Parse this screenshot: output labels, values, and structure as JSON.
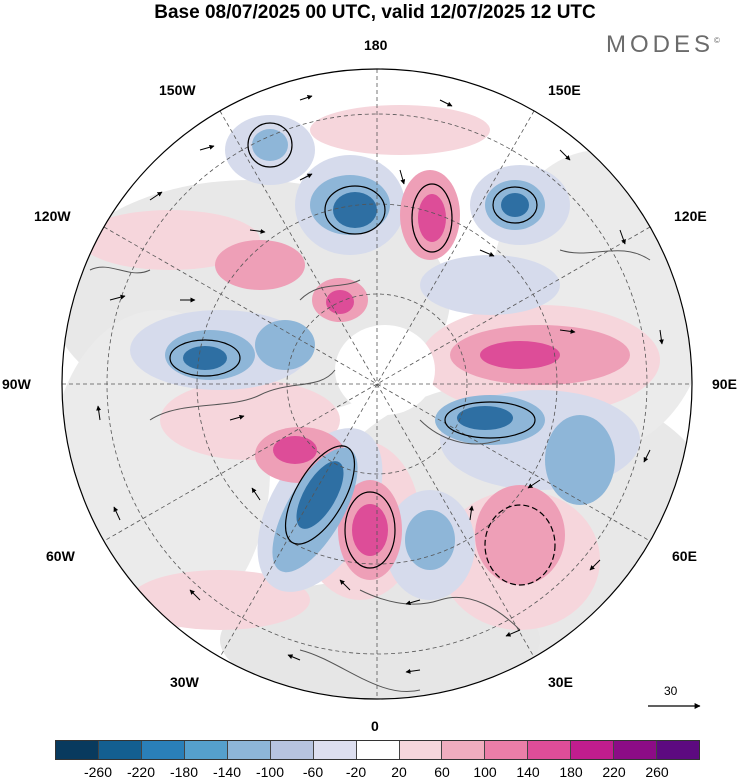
{
  "title": "Base 08/07/2025 00 UTC, valid 12/07/2025 12 UTC",
  "brand": "MODES",
  "brand_mark": "©",
  "map": {
    "projection": "north-polar-stereographic",
    "longitude_labels": {
      "top": "180",
      "bottom": "0",
      "left": "90W",
      "right": "90E",
      "upper_left_1": "150W",
      "upper_left_2": "120W",
      "upper_right_1": "150E",
      "upper_right_2": "120E",
      "lower_left_1": "60W",
      "lower_left_2": "30W",
      "lower_right_1": "60E",
      "lower_right_2": "30E"
    },
    "reference_vector_label": "30",
    "field_colors": {
      "positive_weak": "#f6d6dc",
      "positive_mid": "#ee9fb7",
      "positive_strong": "#dd4d98",
      "negative_weak": "#d6dbec",
      "negative_mid": "#8eb6d8",
      "negative_strong": "#2e6fa3",
      "neutral": "#e8e8e8",
      "land_line": "#555555"
    }
  },
  "colorbar": {
    "colors": [
      "#083a5e",
      "#135f91",
      "#2a7fb8",
      "#55a0cd",
      "#8eb6d8",
      "#b7c4e0",
      "#dddff0",
      "#ffffff",
      "#f6d6dc",
      "#f0adbf",
      "#eb7ea8",
      "#de4d98",
      "#c11d8e",
      "#8c0c86",
      "#5d0a80"
    ],
    "ticks": [
      "-260",
      "-220",
      "-180",
      "-140",
      "-100",
      "-60",
      "-20",
      "20",
      "60",
      "100",
      "140",
      "180",
      "220",
      "260"
    ]
  }
}
